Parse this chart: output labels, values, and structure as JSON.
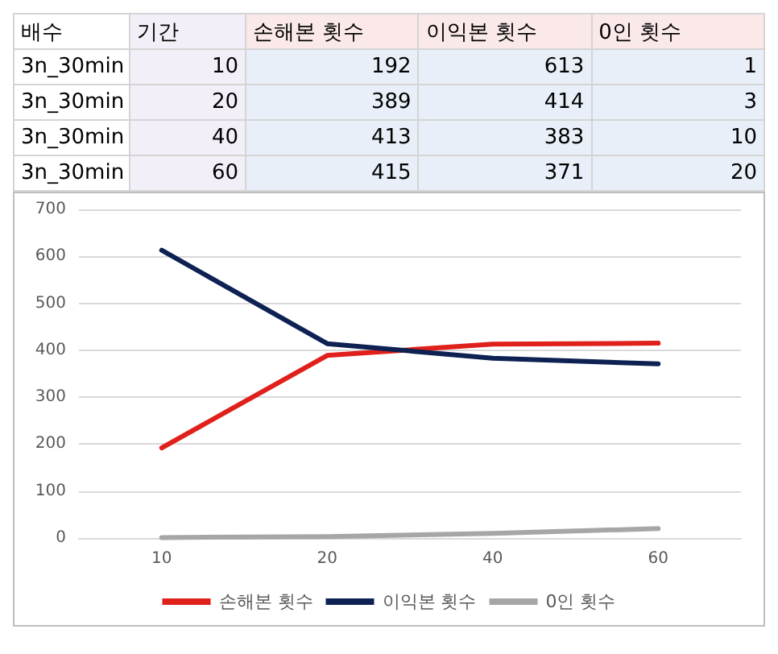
{
  "chart_data": [
    {
      "type": "other",
      "categories": [
        "배수",
        "기간",
        "손해본 횟수",
        "이익본 횟수",
        "0인 횟수"
      ],
      "annotations": [
        "3n_30min",
        "10",
        "192",
        "613",
        "1",
        "3n_30min",
        "20",
        "389",
        "414",
        "3",
        "3n_30min",
        "40",
        "413",
        "383",
        "10",
        "3n_30min",
        "60",
        "415",
        "371",
        "20"
      ]
    },
    {
      "type": "line",
      "categories": [
        "10",
        "20",
        "40",
        "60"
      ],
      "series": [
        {
          "name": "손해본 횟수",
          "color": "#e0201b",
          "values": [
            192,
            389,
            413,
            415
          ]
        },
        {
          "name": "이익본 횟수",
          "color": "#0d2152",
          "values": [
            613,
            414,
            383,
            371
          ]
        },
        {
          "name": "0인 횟수",
          "color": "#a6a6a6",
          "values": [
            1,
            3,
            10,
            20
          ]
        }
      ],
      "ylim": [
        0,
        700
      ],
      "yticks": [
        0,
        100,
        200,
        300,
        400,
        500,
        600,
        700
      ],
      "grid": "y",
      "legend": "bottom",
      "marker": "none",
      "line_style": "solid"
    }
  ]
}
